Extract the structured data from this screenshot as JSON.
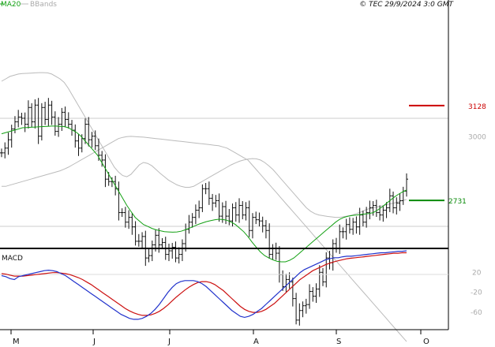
{
  "header": {
    "ma_label": "MA20",
    "bands_label": "BBands",
    "copyright": "© TEC 29/9/2024 3:0 GMT"
  },
  "colors": {
    "ma": "#12a012",
    "bands": "#bbbbbb",
    "price": "#111111",
    "resistance": "#cc0000",
    "support": "#0a8a0a",
    "macd": "#2233cc",
    "signal": "#cc1111",
    "grid": "#cccccc"
  },
  "chart_data": [
    {
      "type": "candlestick",
      "title": "",
      "legend": [
        "MA20",
        "BBands"
      ],
      "x_ticks": [
        "M",
        "J",
        "J",
        "A",
        "S",
        "O"
      ],
      "y_ticks": [
        3000
      ],
      "y_tick_labels": [
        "3000"
      ],
      "ylim": [
        2530,
        3570
      ],
      "levels": [
        {
          "name": "resistance",
          "value": 3128,
          "label": "3128"
        },
        {
          "name": "support",
          "value": 2731,
          "label": "2731"
        }
      ],
      "series": {
        "close": [
          2930,
          2950,
          2985,
          3030,
          3060,
          3080,
          3075,
          3050,
          3120,
          3060,
          3130,
          3000,
          3120,
          3070,
          3130,
          3080,
          3020,
          3050,
          3100,
          3070,
          3050,
          3025,
          2980,
          2950,
          2990,
          3050,
          2985,
          3000,
          2960,
          2920,
          2900,
          2820,
          2810,
          2810,
          2780,
          2680,
          2680,
          2640,
          2660,
          2620,
          2560,
          2560,
          2580,
          2490,
          2500,
          2545,
          2585,
          2545,
          2555,
          2505,
          2520,
          2535,
          2490,
          2505,
          2550,
          2610,
          2640,
          2660,
          2690,
          2700,
          2780,
          2780,
          2740,
          2720,
          2730,
          2665,
          2705,
          2665,
          2645,
          2700,
          2670,
          2710,
          2670,
          2700,
          2605,
          2660,
          2650,
          2645,
          2625,
          2605,
          2505,
          2530,
          2510,
          2420,
          2370,
          2400,
          2390,
          2320,
          2230,
          2270,
          2290,
          2295,
          2350,
          2330,
          2360,
          2430,
          2390,
          2490,
          2470,
          2550,
          2530,
          2600,
          2600,
          2630,
          2610,
          2640,
          2620,
          2670,
          2640,
          2680,
          2700,
          2710,
          2680,
          2670,
          2690,
          2700,
          2750,
          2700,
          2720,
          2730,
          2770,
          2820
        ],
        "ma20": [
          3010,
          3015,
          3020,
          3025,
          3030,
          3035,
          3036,
          3037,
          3038,
          3039,
          3040,
          3041,
          3042,
          3042,
          3041,
          3040,
          3035,
          3025,
          3015,
          3000,
          2980,
          2960,
          2940,
          2920,
          2890,
          2860,
          2830,
          2800,
          2770,
          2740,
          2710,
          2685,
          2660,
          2645,
          2630,
          2622,
          2614,
          2608,
          2604,
          2600,
          2599,
          2598,
          2599,
          2602,
          2608,
          2615,
          2622,
          2630,
          2636,
          2642,
          2646,
          2650,
          2652,
          2651,
          2648,
          2640,
          2630,
          2615,
          2600,
          2580,
          2556,
          2535,
          2515,
          2500,
          2490,
          2482,
          2476,
          2474,
          2474,
          2480,
          2490,
          2505,
          2520,
          2535,
          2550,
          2565,
          2580,
          2595,
          2610,
          2625,
          2640,
          2652,
          2660,
          2665,
          2668,
          2670,
          2672,
          2674,
          2676,
          2680,
          2690,
          2702,
          2716,
          2730,
          2744,
          2756,
          2766,
          2775
        ],
        "bb_upper": [
          3230,
          3240,
          3250,
          3255,
          3260,
          3262,
          3263,
          3264,
          3265,
          3266,
          3266,
          3265,
          3260,
          3250,
          3240,
          3225,
          3200,
          3170,
          3140,
          3110,
          3080,
          3050,
          3020,
          2990,
          2960,
          2930,
          2900,
          2870,
          2850,
          2835,
          2830,
          2840,
          2860,
          2880,
          2890,
          2886,
          2876,
          2860,
          2844,
          2830,
          2816,
          2806,
          2796,
          2790,
          2786,
          2786,
          2790,
          2800,
          2810,
          2820,
          2830,
          2840,
          2850,
          2860,
          2870,
          2880,
          2888,
          2895,
          2900,
          2904,
          2906,
          2905,
          2900,
          2890,
          2876,
          2860,
          2840,
          2820,
          2800,
          2780,
          2760,
          2740,
          2720,
          2700,
          2686,
          2676,
          2670,
          2667,
          2664,
          2662,
          2660,
          2660,
          2663,
          2666,
          2670,
          2676,
          2682,
          2690,
          2696,
          2700,
          2704,
          2708,
          2712,
          2716,
          2720,
          2725,
          2730,
          2735
        ],
        "bb_lower": [
          2790,
          2790,
          2795,
          2800,
          2805,
          2810,
          2815,
          2820,
          2825,
          2830,
          2835,
          2840,
          2845,
          2850,
          2855,
          2862,
          2870,
          2880,
          2890,
          2900,
          2910,
          2920,
          2930,
          2940,
          2950,
          2960,
          2970,
          2980,
          2990,
          2995,
          2998,
          2999,
          2998,
          2997,
          2996,
          2994,
          2992,
          2990,
          2988,
          2986,
          2984,
          2982,
          2980,
          2978,
          2976,
          2974,
          2972,
          2970,
          2968,
          2966,
          2964,
          2962,
          2960,
          2955,
          2950,
          2940,
          2930,
          2920,
          2910,
          2900,
          2880,
          2860,
          2840,
          2820,
          2800,
          2780,
          2760,
          2740,
          2720,
          2700,
          2680,
          2660,
          2640,
          2620,
          2600,
          2580,
          2560,
          2540,
          2520,
          2500,
          2480,
          2460,
          2440,
          2420,
          2400,
          2380,
          2360,
          2340,
          2320,
          2300,
          2280,
          2260,
          2240,
          2220,
          2200,
          2180,
          2160,
          2140
        ]
      }
    },
    {
      "type": "line",
      "title": "MACD",
      "y_ticks": [
        20,
        -20,
        -60
      ],
      "y_tick_labels": [
        "20",
        "-20",
        "-60"
      ],
      "ylim": [
        -92,
        62
      ],
      "series": [
        {
          "name": "MACD",
          "values": [
            12,
            10,
            6,
            4,
            10,
            12,
            14,
            16,
            18,
            20,
            22,
            23,
            22,
            20,
            16,
            12,
            6,
            0,
            -6,
            -12,
            -18,
            -24,
            -30,
            -36,
            -42,
            -48,
            -54,
            -60,
            -66,
            -70,
            -74,
            -76,
            -76,
            -74,
            -70,
            -64,
            -56,
            -46,
            -34,
            -22,
            -12,
            -4,
            0,
            2,
            2,
            2,
            0,
            -4,
            -10,
            -18,
            -26,
            -34,
            -42,
            -50,
            -58,
            -64,
            -70,
            -72,
            -70,
            -66,
            -60,
            -54,
            -46,
            -38,
            -30,
            -22,
            -14,
            -6,
            2,
            10,
            18,
            24,
            28,
            32,
            36,
            40,
            44,
            46,
            48,
            48,
            50,
            51,
            51,
            52,
            53,
            54,
            55,
            56,
            57,
            58,
            58,
            59,
            60,
            61,
            61,
            62
          ]
        },
        {
          "name": "Signal",
          "values": [
            16,
            15,
            13,
            11,
            11,
            11,
            12,
            13,
            14,
            15,
            16,
            17,
            18,
            18,
            17,
            16,
            14,
            11,
            8,
            4,
            -1,
            -6,
            -12,
            -18,
            -24,
            -30,
            -36,
            -42,
            -48,
            -54,
            -59,
            -63,
            -66,
            -68,
            -68,
            -67,
            -64,
            -60,
            -54,
            -47,
            -39,
            -31,
            -24,
            -17,
            -11,
            -6,
            -2,
            0,
            0,
            -2,
            -6,
            -12,
            -18,
            -26,
            -34,
            -42,
            -50,
            -56,
            -60,
            -62,
            -62,
            -60,
            -56,
            -50,
            -44,
            -36,
            -28,
            -20,
            -12,
            -4,
            4,
            10,
            16,
            22,
            26,
            30,
            34,
            37,
            40,
            42,
            44,
            46,
            47,
            48,
            49,
            50,
            51,
            52,
            53,
            54,
            55,
            56,
            57,
            57,
            58,
            58
          ]
        }
      ]
    }
  ]
}
